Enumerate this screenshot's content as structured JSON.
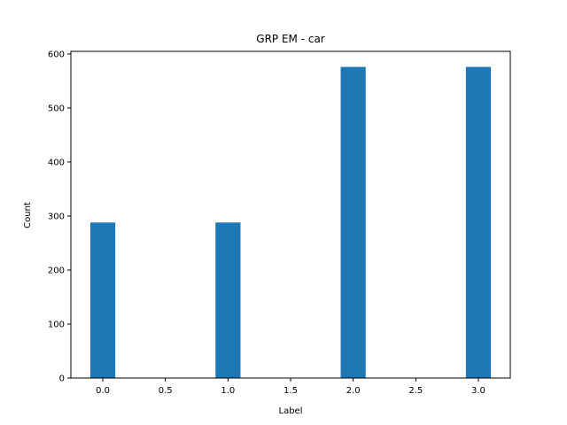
{
  "chart_data": {
    "type": "bar",
    "title": "GRP EM - car",
    "xlabel": "Label",
    "ylabel": "Count",
    "x": [
      0,
      1,
      2,
      3
    ],
    "values": [
      288,
      288,
      576,
      576
    ],
    "bar_width": 0.2,
    "xlim": [
      -0.255,
      3.255
    ],
    "ylim": [
      0,
      604.8
    ],
    "xticks": [
      0.0,
      0.5,
      1.0,
      1.5,
      2.0,
      2.5,
      3.0
    ],
    "xtick_labels": [
      "0.0",
      "0.5",
      "1.0",
      "1.5",
      "2.0",
      "2.5",
      "3.0"
    ],
    "yticks": [
      0,
      100,
      200,
      300,
      400,
      500,
      600
    ],
    "ytick_labels": [
      "0",
      "100",
      "200",
      "300",
      "400",
      "500",
      "600"
    ],
    "grid": false,
    "legend": "none",
    "bar_color": "#1f77b4"
  }
}
